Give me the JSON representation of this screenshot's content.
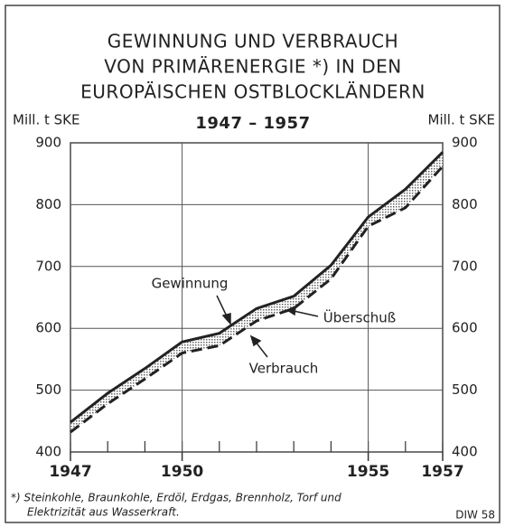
{
  "chart_data": {
    "type": "line",
    "title": [
      "GEWINNUNG UND VERBRAUCH",
      "VON PRIMÄRENERGIE *) IN DEN",
      "EUROPÄISCHEN OSTBLOCKLÄNDERN"
    ],
    "subtitle": "1947 – 1957",
    "y_label": "Mill. t SKE",
    "y2_label": "Mill. t SKE",
    "x": [
      1947,
      1948,
      1949,
      1950,
      1951,
      1952,
      1953,
      1954,
      1955,
      1956,
      1957
    ],
    "series": [
      {
        "name": "Gewinnung",
        "color": "#222222",
        "style": "solid",
        "values": [
          448,
          495,
          535,
          578,
          592,
          632,
          652,
          702,
          780,
          825,
          885
        ]
      },
      {
        "name": "Verbrauch",
        "color": "#222222",
        "style": "dashed",
        "values": [
          432,
          478,
          518,
          560,
          572,
          612,
          632,
          680,
          765,
          795,
          862
        ]
      }
    ],
    "area_label": "Überschuß",
    "xlim": [
      1947,
      1957
    ],
    "xticks": [
      1947,
      1950,
      1955,
      1957
    ],
    "ylim": [
      400,
      900
    ],
    "yticks": [
      400,
      500,
      600,
      700,
      800,
      900
    ],
    "grid": true,
    "footnote": [
      "*) Steinkohle, Braunkohle, Erdöl, Erdgas, Brennholz, Torf und",
      "Elektrizität aus Wasserkraft."
    ],
    "source": "DIW 58"
  }
}
